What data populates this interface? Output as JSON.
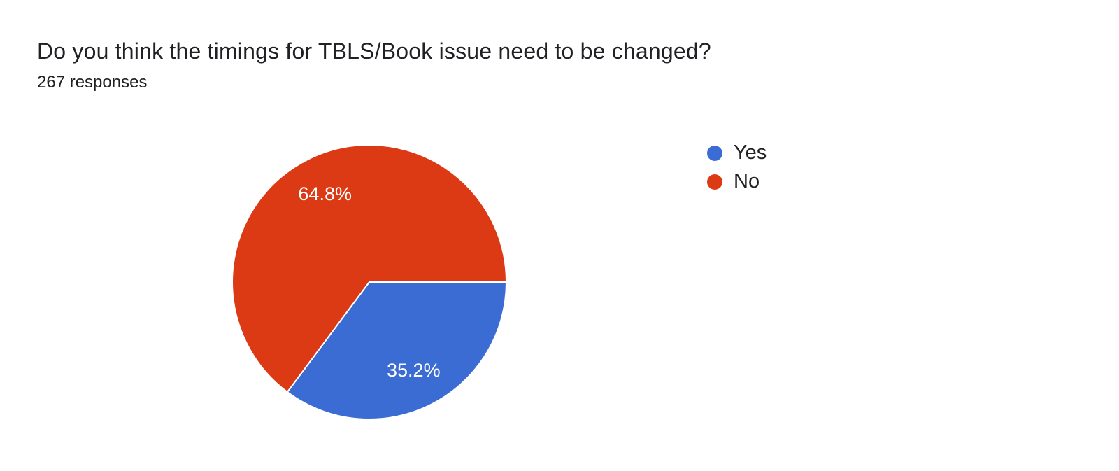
{
  "header": {
    "title": "Do you think the timings for TBLS/Book issue need to be changed?",
    "response_count": "267 responses"
  },
  "chart_data": {
    "type": "pie",
    "title": "Do you think the timings for TBLS/Book issue need to be changed?",
    "subtitle": "267 responses",
    "categories": [
      "Yes",
      "No"
    ],
    "values": [
      35.2,
      64.8
    ],
    "value_unit": "percent",
    "slice_labels": [
      "35.2%",
      "64.8%"
    ],
    "colors": [
      "#3B6CD3",
      "#DC3A15"
    ],
    "slice_label_color": "#FFFFFF",
    "slice_gap_color": "#FFFFFF",
    "start_angle_deg": 0,
    "direction": "clockwise",
    "legend_position": "right",
    "legend": [
      {
        "label": "Yes",
        "color": "#3B6CD3"
      },
      {
        "label": "No",
        "color": "#DC3A15"
      }
    ]
  },
  "colors": {
    "background": "#FFFFFF",
    "title_text": "#202124",
    "legend_text": "#212121"
  }
}
